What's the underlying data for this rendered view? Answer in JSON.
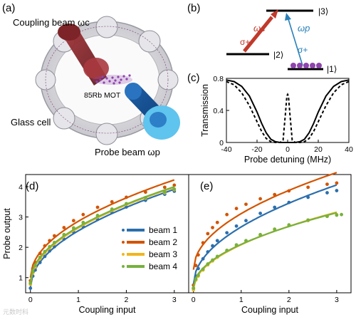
{
  "panels": {
    "a": {
      "label": "(a)",
      "coupling_label": "Coupling beam ωc",
      "mot_label": "85Rb MOT",
      "cell_label": "Glass cell",
      "probe_label": "Probe beam ωp"
    },
    "b": {
      "label": "(b)",
      "state3": "|3⟩",
      "state2": "|2⟩",
      "state1": "|1⟩",
      "omega_c": "ωc",
      "omega_p": "ωp",
      "sigma_left": "σ+",
      "sigma_right": "σ+"
    },
    "c": {
      "label": "(c)"
    },
    "d": {
      "label": "(d)"
    },
    "e": {
      "label": "(e)"
    }
  },
  "colors": {
    "coupling": "#c0392b",
    "probe": "#2980b9",
    "atom": "#8e44ad",
    "beam1": "#2c6fad",
    "beam2": "#d35400",
    "beam3": "#f1b520",
    "beam4": "#77b13d"
  },
  "chart_data": [
    {
      "type": "line",
      "panel": "c",
      "xlabel": "Probe detuning (MHz)",
      "ylabel": "Transmission",
      "xlim": [
        -40,
        40
      ],
      "ylim": [
        0,
        0.8
      ],
      "xticks": [
        "-40",
        "-20",
        "0",
        "20",
        "40"
      ],
      "yticks": [
        "0",
        "0.4",
        "0.8"
      ],
      "series": [
        {
          "style": "solid",
          "x": [
            -40,
            -35,
            -30,
            -25,
            -20,
            -17,
            -14,
            -11,
            -8,
            -5,
            0,
            5,
            8,
            11,
            14,
            17,
            20,
            25,
            30,
            35,
            40
          ],
          "y": [
            0.78,
            0.76,
            0.7,
            0.58,
            0.38,
            0.24,
            0.12,
            0.04,
            0.01,
            0,
            0,
            0,
            0.01,
            0.04,
            0.12,
            0.24,
            0.38,
            0.58,
            0.7,
            0.76,
            0.78
          ]
        },
        {
          "style": "dashed",
          "x": [
            -40,
            -35,
            -30,
            -25,
            -20,
            -17,
            -14,
            -11,
            -8,
            -5,
            -3,
            -1.5,
            -0.5,
            0,
            0.5,
            1.5,
            3,
            5,
            8,
            11,
            14,
            17,
            20,
            25,
            30,
            35,
            40
          ],
          "y": [
            0.76,
            0.72,
            0.62,
            0.46,
            0.26,
            0.14,
            0.05,
            0.01,
            0,
            0,
            0.03,
            0.35,
            0.58,
            0.6,
            0.58,
            0.35,
            0.03,
            0,
            0,
            0.01,
            0.05,
            0.14,
            0.26,
            0.46,
            0.62,
            0.72,
            0.76
          ]
        }
      ]
    },
    {
      "type": "scatter",
      "panel": "d",
      "xlabel": "Coupling input",
      "ylabel": "Probe output",
      "xlim": [
        -0.1,
        3.3
      ],
      "ylim": [
        0.5,
        4.4
      ],
      "xticks": [
        "0",
        "1",
        "2",
        "3"
      ],
      "yticks": [
        "1",
        "2",
        "3",
        "4"
      ],
      "legend_position": "lower-right",
      "series": [
        {
          "name": "beam 1",
          "x": [
            0,
            0.05,
            0.1,
            0.2,
            0.3,
            0.4,
            0.5,
            0.7,
            0.9,
            1.1,
            1.4,
            1.7,
            2.0,
            2.4,
            2.8,
            3.0
          ],
          "y": [
            0.65,
            1.05,
            1.25,
            1.5,
            1.7,
            1.88,
            2.02,
            2.27,
            2.5,
            2.68,
            2.92,
            3.15,
            3.33,
            3.55,
            3.75,
            3.85
          ]
        },
        {
          "name": "beam 2",
          "x": [
            0,
            0.05,
            0.1,
            0.2,
            0.3,
            0.4,
            0.5,
            0.7,
            0.9,
            1.1,
            1.4,
            1.7,
            2.0,
            2.4,
            2.8,
            3.0
          ],
          "y": [
            0.9,
            1.3,
            1.5,
            1.8,
            2.05,
            2.22,
            2.38,
            2.65,
            2.88,
            3.08,
            3.32,
            3.5,
            3.65,
            3.82,
            3.98,
            4.05
          ]
        },
        {
          "name": "beam 3",
          "x": [
            0,
            0.05,
            0.1,
            0.2,
            0.3,
            0.4,
            0.5,
            0.7,
            0.9,
            1.1,
            1.4,
            1.7,
            2.0,
            2.4,
            2.8,
            3.0
          ],
          "y": [
            0.78,
            1.15,
            1.35,
            1.62,
            1.82,
            1.98,
            2.12,
            2.38,
            2.6,
            2.8,
            3.02,
            3.22,
            3.42,
            3.62,
            3.8,
            3.9
          ]
        },
        {
          "name": "beam 4",
          "x": [
            0,
            0.05,
            0.1,
            0.2,
            0.3,
            0.4,
            0.5,
            0.7,
            0.9,
            1.1,
            1.4,
            1.7,
            2.0,
            2.4,
            2.8,
            3.0
          ],
          "y": [
            0.82,
            1.2,
            1.4,
            1.67,
            1.86,
            2.02,
            2.16,
            2.42,
            2.64,
            2.82,
            3.05,
            3.26,
            3.44,
            3.64,
            3.82,
            3.92
          ]
        }
      ]
    },
    {
      "type": "scatter",
      "panel": "e",
      "xlabel": "Coupling input",
      "ylabel": "",
      "xlim": [
        -0.1,
        3.3
      ],
      "ylim": [
        0.5,
        4.4
      ],
      "xticks": [
        "0",
        "1",
        "2",
        "3"
      ],
      "series": [
        {
          "name": "beam 1",
          "x": [
            0,
            0.05,
            0.1,
            0.2,
            0.3,
            0.4,
            0.5,
            0.7,
            0.9,
            1.1,
            1.4,
            1.7,
            2.0,
            2.4,
            2.8,
            3.0
          ],
          "y": [
            0.65,
            1.05,
            1.3,
            1.62,
            1.85,
            2.05,
            2.22,
            2.48,
            2.7,
            2.88,
            3.12,
            3.32,
            3.48,
            3.65,
            3.8,
            3.87
          ]
        },
        {
          "name": "beam 2",
          "x": [
            0,
            0.05,
            0.1,
            0.2,
            0.3,
            0.4,
            0.5,
            0.7,
            0.9,
            1.1,
            1.4,
            1.7,
            2.0,
            2.4,
            2.8,
            3.0
          ],
          "y": [
            0.75,
            1.4,
            1.75,
            2.15,
            2.45,
            2.65,
            2.82,
            3.08,
            3.28,
            3.42,
            3.6,
            3.74,
            3.86,
            3.98,
            4.08,
            4.12
          ]
        },
        {
          "name": "beam 3",
          "x": [
            0,
            0.05,
            0.1,
            0.2,
            0.3,
            0.4,
            0.5,
            0.7,
            0.9,
            1.1,
            1.4,
            1.7,
            2.0,
            2.4,
            2.8,
            3.0
          ],
          "y": [
            0.6,
            0.92,
            1.05,
            1.25,
            1.42,
            1.55,
            1.67,
            1.88,
            2.05,
            2.2,
            2.4,
            2.58,
            2.72,
            2.88,
            3.02,
            3.08
          ]
        },
        {
          "name": "beam 4",
          "x": [
            0,
            0.05,
            0.1,
            0.2,
            0.3,
            0.4,
            0.5,
            0.7,
            0.9,
            1.1,
            1.4,
            1.7,
            2.0,
            2.4,
            2.8,
            3.0,
            3.1
          ],
          "y": [
            0.65,
            0.95,
            1.08,
            1.28,
            1.45,
            1.58,
            1.7,
            1.9,
            2.08,
            2.22,
            2.42,
            2.6,
            2.74,
            2.9,
            3.02,
            3.06,
            3.08
          ]
        }
      ]
    }
  ],
  "watermark": "元数时科"
}
